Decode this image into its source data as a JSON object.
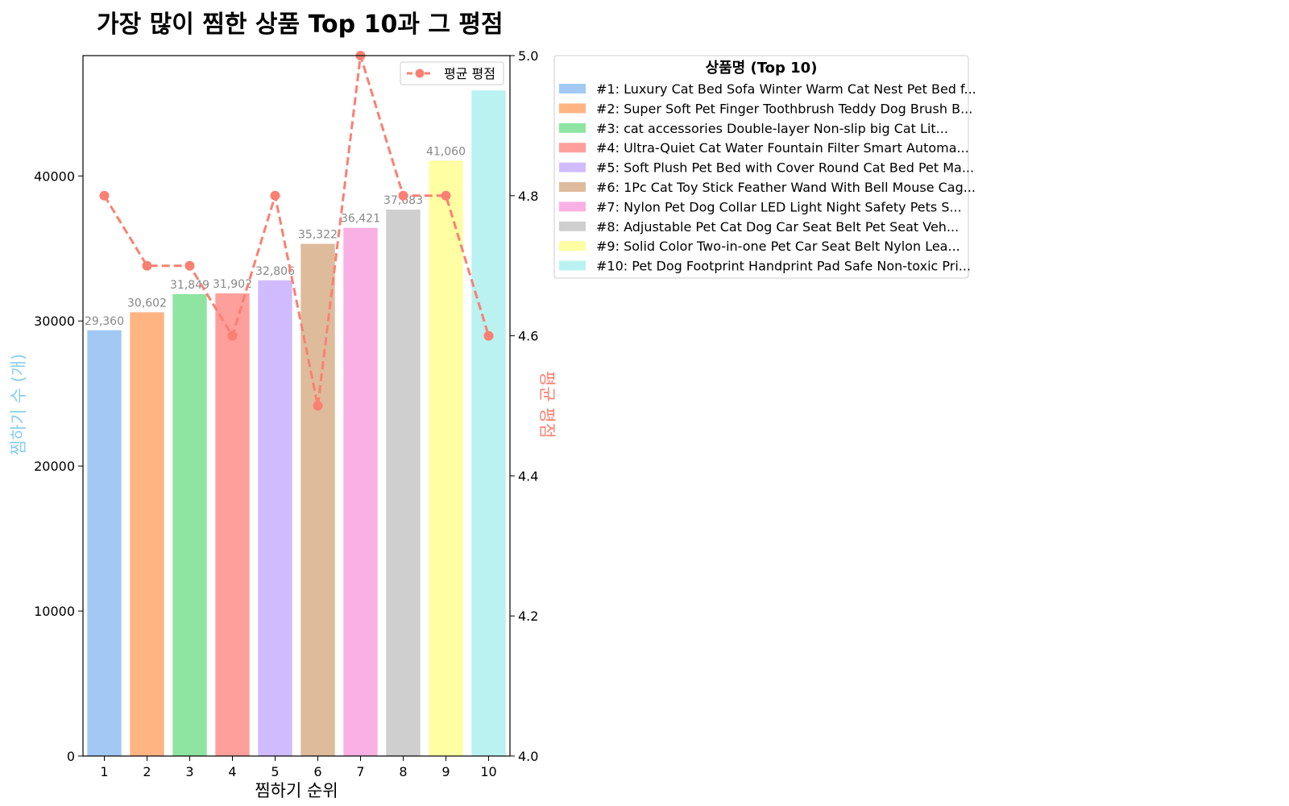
{
  "chart_data": {
    "type": "bar",
    "title": "가장 많이 찜한 상품 Top 10과 그 평점",
    "xlabel": "찜하기 순위",
    "ylabel": "찜하기 수 (개)",
    "ylabel_right": "평균 평점",
    "categories": [
      "1",
      "2",
      "3",
      "4",
      "5",
      "6",
      "7",
      "8",
      "9",
      "10"
    ],
    "series": [
      {
        "axis": "left",
        "kind": "bar",
        "values": [
          29360,
          30602,
          31849,
          31902,
          32806,
          35322,
          36421,
          37683,
          41060,
          45900
        ],
        "data_labels": [
          "29,360",
          "30,602",
          "31,849",
          "31,902",
          "32,806",
          "35,322",
          "36,421",
          "37,683",
          "41,060",
          ""
        ]
      },
      {
        "name": "평균 평점",
        "axis": "right",
        "kind": "line",
        "style": "dashed",
        "marker": "circle",
        "color": "#fa8072",
        "values": [
          4.8,
          4.7,
          4.7,
          4.6,
          4.8,
          4.5,
          5.0,
          4.8,
          4.8,
          4.6
        ]
      }
    ],
    "bar_colors": [
      "#a1c9f4",
      "#ffb482",
      "#8de5a1",
      "#ff9f9b",
      "#d0bbff",
      "#debb9b",
      "#fab0e4",
      "#cfcfcf",
      "#fffea3",
      "#b9f2f0"
    ],
    "ylim": [
      0,
      48300
    ],
    "yticks": [
      0,
      10000,
      20000,
      30000,
      40000
    ],
    "ylim_right": [
      4.0,
      5.0
    ],
    "yticks_right": [
      "4.0",
      "4.2",
      "4.4",
      "4.6",
      "4.8",
      "5.0"
    ],
    "ylabel_color": "#87ceeb",
    "ylabel_right_color": "#fa8072",
    "line_legend_position": "upper right",
    "legend": {
      "title": "상품명 (Top 10)",
      "placement": "outside right",
      "entries": [
        "#1: Luxury Cat Bed Sofa Winter Warm Cat Nest Pet Bed f...",
        "#2: Super Soft Pet Finger Toothbrush Teddy Dog Brush B...",
        "#3: cat accessories Double-layer  Non-slip big Cat Lit...",
        "#4: Ultra-Quiet Cat Water Fountain Filter Smart Automa...",
        "#5: Soft Plush Pet Bed with Cover Round Cat Bed Pet Ma...",
        "#6: 1Pc Cat Toy Stick Feather Wand With Bell Mouse Cag...",
        "#7: Nylon Pet Dog Collar LED Light Night Safety Pets S...",
        "#8: Adjustable Pet Cat Dog Car Seat  Belt Pet Seat Veh...",
        "#9: Solid Color Two-in-one Pet Car Seat Belt Nylon Lea...",
        "#10: Pet Dog Footprint Handprint Pad Safe Non-toxic Pri..."
      ]
    }
  }
}
